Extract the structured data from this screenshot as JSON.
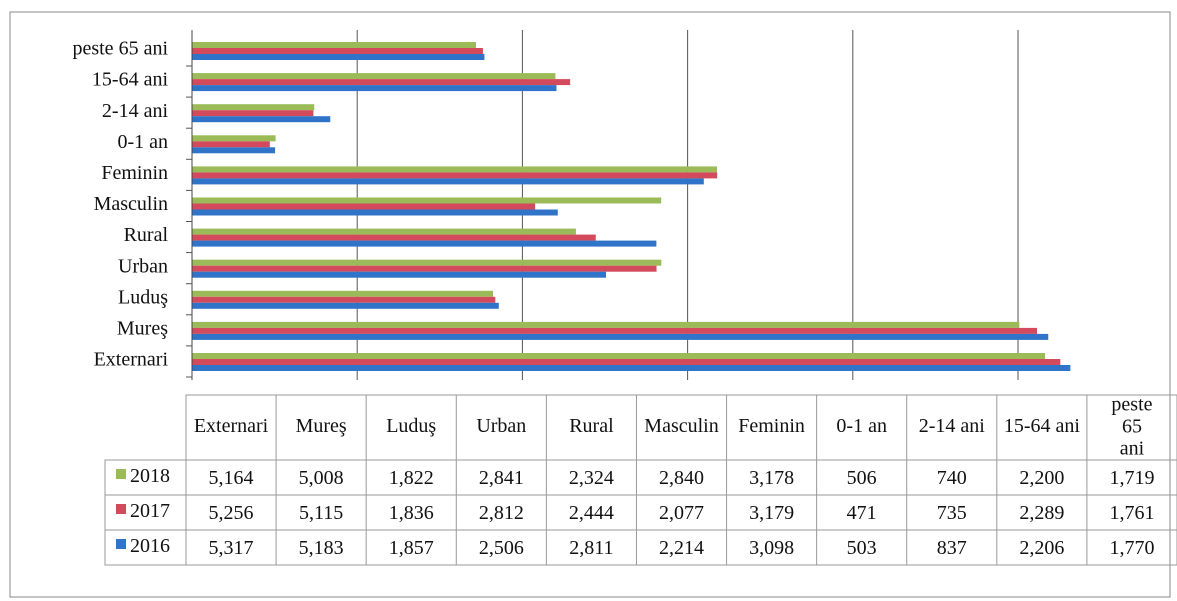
{
  "chart_data": {
    "type": "bar",
    "orientation": "horizontal",
    "categories": [
      "Externari",
      "Mureş",
      "Luduş",
      "Urban",
      "Rural",
      "Masculin",
      "Feminin",
      "0-1 an",
      "2-14 ani",
      "15-64 ani",
      "peste 65 ani"
    ],
    "series": [
      {
        "name": "2018",
        "color": "#9bbb59",
        "values": [
          5164,
          5008,
          1822,
          2841,
          2324,
          2840,
          3178,
          506,
          740,
          2200,
          1719
        ],
        "value_labels": [
          "5,164",
          "5,008",
          "1,822",
          "2,841",
          "2,324",
          "2,840",
          "3,178",
          "506",
          "740",
          "2,200",
          "1,719"
        ]
      },
      {
        "name": "2017",
        "color": "#d24a5c",
        "values": [
          5256,
          5115,
          1836,
          2812,
          2444,
          2077,
          3179,
          471,
          735,
          2289,
          1761
        ],
        "value_labels": [
          "5,256",
          "5,115",
          "1,836",
          "2,812",
          "2,444",
          "2,077",
          "3,179",
          "471",
          "735",
          "2,289",
          "1,761"
        ]
      },
      {
        "name": "2016",
        "color": "#2f74c8",
        "values": [
          5317,
          5183,
          1857,
          2506,
          2811,
          2214,
          3098,
          503,
          837,
          2206,
          1770
        ],
        "value_labels": [
          "5,317",
          "5,183",
          "1,857",
          "2,506",
          "2,811",
          "2,214",
          "3,098",
          "503",
          "837",
          "2,206",
          "1,770"
        ]
      }
    ],
    "xlim": [
      0,
      5920
    ],
    "xticks": [
      0,
      1000,
      2000,
      3000,
      4000,
      5000
    ],
    "grid": true
  }
}
